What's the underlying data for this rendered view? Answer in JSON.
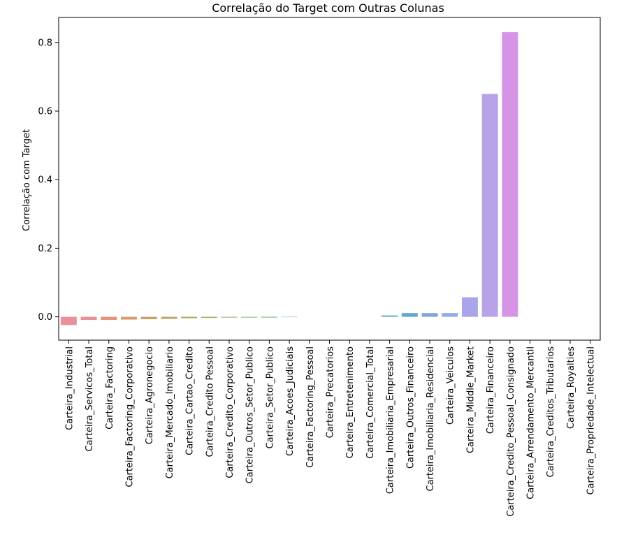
{
  "chart_data": {
    "type": "bar",
    "title": "Correlação do Target com Outras Colunas",
    "xlabel": "",
    "ylabel": "Correlação com Target",
    "ylim": [
      -0.068,
      0.873
    ],
    "yticks": [
      0.0,
      0.2,
      0.4,
      0.6,
      0.8
    ],
    "ytick_labels": [
      "0.0",
      "0.2",
      "0.4",
      "0.6",
      "0.8"
    ],
    "grid": false,
    "legend": "none",
    "categories": [
      "Carteira_Industrial",
      "Carteira_Servicos_Total",
      "Carteira_Factoring",
      "Carteira_Factoring_Corporativo",
      "Carteira_Agronegocio",
      "Carteira_Mercado_Imobiliario",
      "Carteira_Cartao_Credito",
      "Carteira_Credito Pessoal",
      "Carteira_Credito_Corporativo",
      "Carteira_Outros_Setor_Publico",
      "Carteira_Setor_Publico",
      "Carteira_Acoes_Judiciais",
      "Carteira_Factoring_Pessoal",
      "Carteira_Precatorios",
      "Carteira_Entretenimento",
      "Carteira_Comercial_Total",
      "Carteira_Imobiliaria_Empresarial",
      "Carteira_Outros_Financeiro",
      "Carteira_Imobiliaria_Residencial",
      "Carteira_Veiculos",
      "Carteira_Middle_Market",
      "Carteira_Financeiro",
      "Carteira_Credito_Pessoal_Consignado",
      "Carteira_Arrendamento_Mercantil",
      "Carteira_Creditos_Tributarios",
      "Carteira_Royalties",
      "Carteira_Propriedade_Intelectual"
    ],
    "values": [
      -0.024,
      -0.009,
      -0.009,
      -0.008,
      -0.007,
      -0.006,
      -0.004,
      -0.003,
      -0.002,
      -0.002,
      -0.002,
      -0.001,
      0.0,
      0.0,
      0.0,
      0.0,
      0.004,
      0.011,
      0.011,
      0.011,
      0.057,
      0.65,
      0.83,
      0.0,
      0.0,
      0.0,
      0.0
    ],
    "colors": [
      "#e8919b",
      "#e89093",
      "#e8927c",
      "#d99a6b",
      "#c6a162",
      "#b8a760",
      "#aba85b",
      "#9eac5c",
      "#8dac5e",
      "#7aae65",
      "#68b072",
      "#5cb185",
      "#58b196",
      "#5aafa3",
      "#5cadae",
      "#5eabb8",
      "#5faac6",
      "#62a6d5",
      "#7ea6e1",
      "#98a8e8",
      "#aaa5ea",
      "#b8a3e8",
      "#d694e6",
      "#e58fe0",
      "#e78fd2",
      "#e88fc4",
      "#e891b3"
    ]
  }
}
